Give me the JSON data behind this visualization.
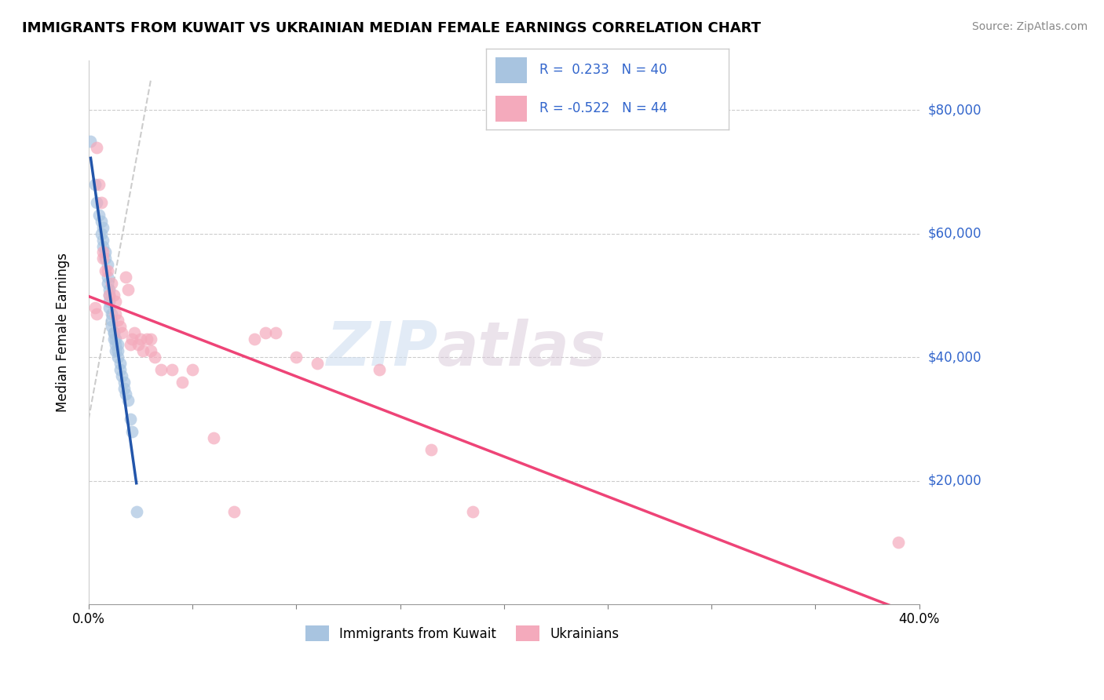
{
  "title": "IMMIGRANTS FROM KUWAIT VS UKRAINIAN MEDIAN FEMALE EARNINGS CORRELATION CHART",
  "source": "Source: ZipAtlas.com",
  "ylabel": "Median Female Earnings",
  "xlim": [
    0.0,
    0.4
  ],
  "ylim": [
    0,
    88000
  ],
  "xtick_values": [
    0.0,
    0.05,
    0.1,
    0.15,
    0.2,
    0.25,
    0.3,
    0.35,
    0.4
  ],
  "xtick_labels": [
    "0.0%",
    "",
    "",
    "",
    "",
    "",
    "",
    "",
    "40.0%"
  ],
  "ytick_values": [
    20000,
    40000,
    60000,
    80000
  ],
  "ytick_labels": [
    "$20,000",
    "$40,000",
    "$60,000",
    "$80,000"
  ],
  "legend_entries": [
    "Immigrants from Kuwait",
    "Ukrainians"
  ],
  "legend_r_n": [
    {
      "R": "0.233",
      "N": 40
    },
    {
      "R": "-0.522",
      "N": 44
    }
  ],
  "blue_color": "#a8c4e0",
  "pink_color": "#f4aabc",
  "blue_line_color": "#2255aa",
  "pink_line_color": "#ee4477",
  "watermark_zip": "ZIP",
  "watermark_atlas": "atlas",
  "kuwait_points": [
    [
      0.001,
      75000
    ],
    [
      0.003,
      68000
    ],
    [
      0.004,
      65000
    ],
    [
      0.005,
      63000
    ],
    [
      0.006,
      62000
    ],
    [
      0.006,
      60000
    ],
    [
      0.007,
      61000
    ],
    [
      0.007,
      59000
    ],
    [
      0.007,
      58000
    ],
    [
      0.008,
      57000
    ],
    [
      0.008,
      56000
    ],
    [
      0.009,
      55000
    ],
    [
      0.009,
      53000
    ],
    [
      0.009,
      52000
    ],
    [
      0.01,
      51000
    ],
    [
      0.01,
      50000
    ],
    [
      0.01,
      49000
    ],
    [
      0.01,
      48000
    ],
    [
      0.011,
      47000
    ],
    [
      0.011,
      46000
    ],
    [
      0.011,
      45000
    ],
    [
      0.012,
      44000
    ],
    [
      0.012,
      43000
    ],
    [
      0.012,
      44000
    ],
    [
      0.013,
      43000
    ],
    [
      0.013,
      42000
    ],
    [
      0.013,
      41000
    ],
    [
      0.014,
      42000
    ],
    [
      0.014,
      41000
    ],
    [
      0.014,
      40000
    ],
    [
      0.015,
      39000
    ],
    [
      0.015,
      38000
    ],
    [
      0.016,
      37000
    ],
    [
      0.017,
      36000
    ],
    [
      0.017,
      35000
    ],
    [
      0.018,
      34000
    ],
    [
      0.019,
      33000
    ],
    [
      0.02,
      30000
    ],
    [
      0.021,
      28000
    ],
    [
      0.023,
      15000
    ]
  ],
  "ukrainian_points": [
    [
      0.003,
      48000
    ],
    [
      0.004,
      47000
    ],
    [
      0.004,
      74000
    ],
    [
      0.005,
      68000
    ],
    [
      0.006,
      65000
    ],
    [
      0.007,
      57000
    ],
    [
      0.007,
      56000
    ],
    [
      0.008,
      54000
    ],
    [
      0.009,
      54000
    ],
    [
      0.01,
      50000
    ],
    [
      0.011,
      52000
    ],
    [
      0.012,
      50000
    ],
    [
      0.013,
      49000
    ],
    [
      0.013,
      47000
    ],
    [
      0.014,
      46000
    ],
    [
      0.015,
      45000
    ],
    [
      0.016,
      44000
    ],
    [
      0.018,
      53000
    ],
    [
      0.019,
      51000
    ],
    [
      0.02,
      42000
    ],
    [
      0.021,
      43000
    ],
    [
      0.022,
      44000
    ],
    [
      0.024,
      42000
    ],
    [
      0.025,
      43000
    ],
    [
      0.026,
      41000
    ],
    [
      0.028,
      43000
    ],
    [
      0.03,
      43000
    ],
    [
      0.03,
      41000
    ],
    [
      0.032,
      40000
    ],
    [
      0.035,
      38000
    ],
    [
      0.04,
      38000
    ],
    [
      0.045,
      36000
    ],
    [
      0.05,
      38000
    ],
    [
      0.06,
      27000
    ],
    [
      0.07,
      15000
    ],
    [
      0.08,
      43000
    ],
    [
      0.085,
      44000
    ],
    [
      0.09,
      44000
    ],
    [
      0.1,
      40000
    ],
    [
      0.11,
      39000
    ],
    [
      0.14,
      38000
    ],
    [
      0.165,
      25000
    ],
    [
      0.185,
      15000
    ],
    [
      0.39,
      10000
    ]
  ],
  "diag_line": [
    [
      0.0,
      30000
    ],
    [
      0.03,
      85000
    ]
  ]
}
